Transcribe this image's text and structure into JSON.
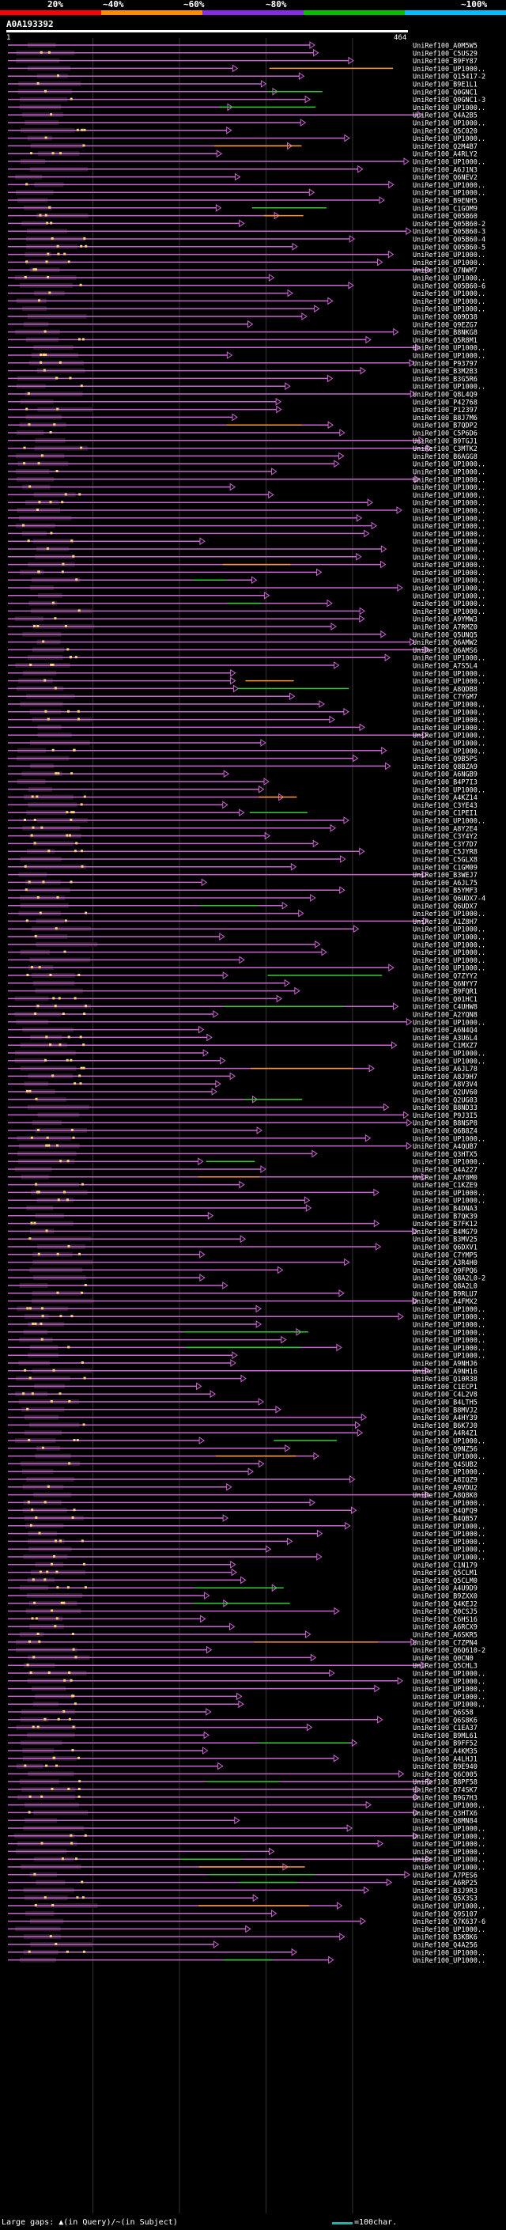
{
  "legend": {
    "labels": [
      "20%",
      "~40%",
      "~60%",
      "~80%",
      "~100%"
    ],
    "colors": [
      "#ff0000",
      "#ff8c00",
      "#8a2be2",
      "#00c000",
      "#00bfff"
    ]
  },
  "query": {
    "name": "A0A193392",
    "start": "1",
    "end": "464"
  },
  "colors": {
    "hit": "#c966d0",
    "hit_mid": "#ff9a2e",
    "hit_high": "#32cd32",
    "lowq": "#ffd27f",
    "grid": "#333333"
  },
  "footer": {
    "large_gaps": "Large gaps: ▲(in Query)/~(in Subject)",
    "scale": "=100char."
  },
  "chart_data": {
    "type": "alignment-overview",
    "query_length": 464,
    "hit_labels": [
      "UniRef100_A0M5W5",
      "UniRef100_C5US29",
      "UniRef100_B9FY87",
      "UniRef100_UP1000..",
      "UniRef100_Q15417-2",
      "UniRef100_B9E1L1",
      "UniRef100_Q0GNC1",
      "UniRef100_Q0GNC1-3",
      "UniRef100_UP1000..",
      "UniRef100_Q4A2B5",
      "UniRef100_UP1000..",
      "UniRef100_Q5C020",
      "UniRef100_UP1000..",
      "UniRef100_Q2M4B7",
      "UniRef100_A4RLY2",
      "UniRef100_UP1000..",
      "UniRef100_A6J1N3",
      "UniRef100_Q6NEV2",
      "UniRef100_UP1000..",
      "UniRef100_UP1000..",
      "UniRef100_B9ENH5",
      "UniRef100_C1GOM9",
      "UniRef100_Q05B60",
      "UniRef100_Q05B60-2",
      "UniRef100_Q05B60-3",
      "UniRef100_Q05B60-4",
      "UniRef100_Q05B60-5",
      "UniRef100_UP1000..",
      "UniRef100_UP1000..",
      "UniRef100_Q7NWM7",
      "UniRef100_UP1000..",
      "UniRef100_Q05B60-6",
      "UniRef100_UP1000..",
      "UniRef100_UP1000..",
      "UniRef100_UP1000..",
      "UniRef100_Q09D38",
      "UniRef100_Q9EZG7",
      "UniRef100_B8NKG8",
      "UniRef100_Q5R8M1",
      "UniRef100_UP1000..",
      "UniRef100_UP1000..",
      "UniRef100_P93797",
      "UniRef100_B3M2B3",
      "UniRef100_B3G5R6",
      "UniRef100_UP1000..",
      "UniRef100_Q8L4Q9",
      "UniRef100_P42768",
      "UniRef100_P12397",
      "UniRef100_B8J7M6",
      "UniRef100_B7QDP2",
      "UniRef100_C5P6D6",
      "UniRef100_B9TGJ1",
      "UniRef100_C3MTK2",
      "UniRef100_B6AGG8",
      "UniRef100_UP1000..",
      "UniRef100_UP1000..",
      "UniRef100_UP1000..",
      "UniRef100_UP1000..",
      "UniRef100_UP1000..",
      "UniRef100_UP1000..",
      "UniRef100_UP1000..",
      "UniRef100_UP1000..",
      "UniRef100_UP1000..",
      "UniRef100_UP1000..",
      "UniRef100_UP1000..",
      "UniRef100_UP1000..",
      "UniRef100_UP1000..",
      "UniRef100_UP1000..",
      "UniRef100_UP1000..",
      "UniRef100_UP1000..",
      "UniRef100_UP1000..",
      "UniRef100_UP1000..",
      "UniRef100_UP1000..",
      "UniRef100_UP1000..",
      "UniRef100_A9YMW3",
      "UniRef100_A7RMZ0",
      "UniRef100_Q5UNQ5",
      "UniRef100_Q6AMW2",
      "UniRef100_Q6AMS6",
      "UniRef100_UP1000..",
      "UniRef100_A7S5L4",
      "UniRef100_UP1000..",
      "UniRef100_UP1000..",
      "UniRef100_A8QDB8",
      "UniRef100_C7YGM7",
      "UniRef100_UP1000..",
      "UniRef100_UP1000..",
      "UniRef100_UP1000..",
      "UniRef100_UP1000..",
      "UniRef100_UP1000..",
      "UniRef100_UP1000..",
      "UniRef100_UP1000..",
      "UniRef100_Q9B5PS",
      "UniRef100_Q8BZA9",
      "UniRef100_A6NGB9",
      "UniRef100_B4P7I3",
      "UniRef100_UP1000..",
      "UniRef100_A4KZ14",
      "UniRef100_C3YE43",
      "UniRef100_C1PEI1",
      "UniRef100_UP1000..",
      "UniRef100_A8Y2E4",
      "UniRef100_C3Y4Y2",
      "UniRef100_C3Y7D7",
      "UniRef100_C5JYR8",
      "UniRef100_C5GLX8",
      "UniRef100_C1GM09",
      "UniRef100_B3WEJ7",
      "UniRef100_A6JL75",
      "UniRef100_B5YMF3",
      "UniRef100_Q6UDX7-4",
      "UniRef100_Q6UDX7",
      "UniRef100_UP1000..",
      "UniRef100_A1Z8H7",
      "UniRef100_UP1000..",
      "UniRef100_UP1000..",
      "UniRef100_UP1000..",
      "UniRef100_UP1000..",
      "UniRef100_UP1000..",
      "UniRef100_UP1000..",
      "UniRef100_Q7ZYY2",
      "UniRef100_Q6NYY7",
      "UniRef100_B9FQR1",
      "UniRef100_Q01HC1",
      "UniRef100_C4UHW8",
      "UniRef100_A2YQN8",
      "UniRef100_UP1000..",
      "UniRef100_A6N4Q4",
      "UniRef100_A3U6L4",
      "UniRef100_C1MXZ7",
      "UniRef100_UP1000..",
      "UniRef100_UP1000..",
      "UniRef100_A6JL78",
      "UniRef100_A8J9H7",
      "UniRef100_A8V3V4",
      "UniRef100_Q2UV60",
      "UniRef100_Q2UG03",
      "UniRef100_B8ND33",
      "UniRef100_P9J3I5",
      "UniRef100_B8NSP8",
      "UniRef100_Q6B8Z4",
      "UniRef100_UP1000..",
      "UniRef100_A4QUB7",
      "UniRef100_Q3HTX5",
      "UniRef100_UP1000..",
      "UniRef100_Q4A227",
      "UniRef100_A8Y8M0",
      "UniRef100_C1KZE9",
      "UniRef100_UP1000..",
      "UniRef100_UP1000..",
      "UniRef100_B4DNA3",
      "UniRef100_B7QK39",
      "UniRef100_B7FK12",
      "UniRef100_B4MG79",
      "UniRef100_B3MV25",
      "UniRef100_Q6DXV1",
      "UniRef100_C7YMP5",
      "UniRef100_A3R4H0",
      "UniRef100_Q9FPQ6",
      "UniRef100_Q8A2L0-2",
      "UniRef100_Q8A2L0",
      "UniRef100_B9RLU7",
      "UniRef100_A4FMX2",
      "UniRef100_UP1000..",
      "UniRef100_UP1000..",
      "UniRef100_UP1000..",
      "UniRef100_UP1000..",
      "UniRef100_UP1000..",
      "UniRef100_UP1000..",
      "UniRef100_UP1000..",
      "UniRef100_A9NHJ6",
      "UniRef100_A9NH16",
      "UniRef100_Q10R38",
      "UniRef100_C1ECP1",
      "UniRef100_C4L2V8",
      "UniRef100_B4LTH5",
      "UniRef100_B8MVJ2",
      "UniRef100_A4HY39",
      "UniRef100_B6K7J0",
      "UniRef100_A4R4Z1",
      "UniRef100_UP1000..",
      "UniRef100_Q9NZ56",
      "UniRef100_UP1000..",
      "UniRef100_Q4SUB2",
      "UniRef100_UP1000..",
      "UniRef100_A8IQZ9",
      "UniRef100_A9VDU2",
      "UniRef100_A8Q8K0",
      "UniRef100_UP1000..",
      "UniRef100_Q4QFQ9",
      "UniRef100_B4QB57",
      "UniRef100_UP1000..",
      "UniRef100_UP1000..",
      "UniRef100_UP1000..",
      "UniRef100_UP1000..",
      "UniRef100_UP1000..",
      "UniRef100_C1N179",
      "UniRef100_Q5CLM1",
      "UniRef100_Q5CLM0",
      "UniRef100_A4U9D9",
      "UniRef100_B9ZXX0",
      "UniRef100_Q4KEJ2",
      "UniRef100_Q0CSJ5",
      "UniRef100_C6HS16",
      "UniRef100_A6RCX9",
      "UniRef100_A6SKR5",
      "UniRef100_C7ZPN4",
      "UniRef100_Q6Q610-2",
      "UniRef100_Q0CN0",
      "UniRef100_Q5CHL3",
      "UniRef100_UP1000..",
      "UniRef100_UP1000..",
      "UniRef100_UP1000..",
      "UniRef100_UP1000..",
      "UniRef100_UP1000..",
      "UniRef100_Q6S58",
      "UniRef100_Q6S8K6",
      "UniRef100_C1EA37",
      "UniRef100_B9ML61",
      "UniRef100_B9FF52",
      "UniRef100_A4KM35",
      "UniRef100_A4LHJ1",
      "UniRef100_B9E940",
      "UniRef100_Q6C005",
      "UniRef100_B8PF58",
      "UniRef100_Q74SK7",
      "UniRef100_B9G7H3",
      "UniRef100_UP1000..",
      "UniRef100_Q3HTX6",
      "UniRef100_Q8MN84",
      "UniRef100_UP1000..",
      "UniRef100_UP1000..",
      "UniRef100_UP1000..",
      "UniRef100_UP1000..",
      "UniRef100_UP1000..",
      "UniRef100_UP1000..",
      "UniRef100_A7PES6",
      "UniRef100_A6RP25",
      "UniRef100_B3J9R3",
      "UniRef100_Q5X3S3",
      "UniRef100_UP1000..",
      "UniRef100_Q9S107",
      "UniRef100_Q7K637-6",
      "UniRef100_UP1000..",
      "UniRef100_B3KBK6",
      "UniRef100_Q4A256",
      "UniRef100_UP1000..",
      "UniRef100_UP1000.."
    ]
  }
}
